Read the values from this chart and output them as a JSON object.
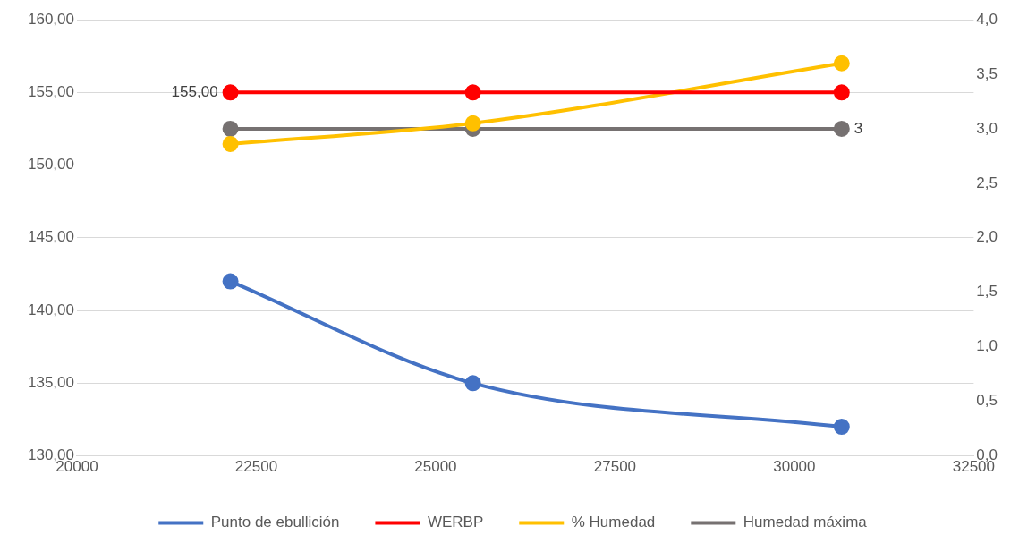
{
  "chart_data": {
    "type": "line",
    "x": [
      22140,
      25520,
      30660
    ],
    "series": [
      {
        "name": "Punto de ebullición",
        "color": "#4472c4",
        "values": [
          142,
          135,
          132
        ],
        "axis": "y"
      },
      {
        "name": "WERBP",
        "color": "#ff0000",
        "values": [
          155,
          155,
          155
        ],
        "axis": "y",
        "value_labels": [
          "155,00",
          null,
          null
        ]
      },
      {
        "name": "% Humedad",
        "color": "#ffc000",
        "values": [
          2.86,
          3.05,
          3.6
        ],
        "axis": "y2"
      },
      {
        "name": "Humedad máxima",
        "color": "#767171",
        "values": [
          3,
          3,
          3
        ],
        "axis": "y2",
        "value_labels": [
          null,
          null,
          "3"
        ]
      }
    ],
    "xlim": [
      20000,
      32500
    ],
    "xticks": [
      20000,
      22500,
      25000,
      27500,
      30000,
      32500
    ],
    "ylim": [
      130,
      160
    ],
    "yticks": [
      {
        "value": 130,
        "label": "130,00"
      },
      {
        "value": 135,
        "label": "135,00"
      },
      {
        "value": 140,
        "label": "140,00"
      },
      {
        "value": 145,
        "label": "145,00"
      },
      {
        "value": 150,
        "label": "150,00"
      },
      {
        "value": 155,
        "label": "155,00"
      },
      {
        "value": 160,
        "label": "160,00"
      }
    ],
    "y2lim": [
      0,
      4
    ],
    "y2ticks": [
      {
        "value": 0,
        "label": "0,0"
      },
      {
        "value": 0.5,
        "label": "0,5"
      },
      {
        "value": 1,
        "label": "1,0"
      },
      {
        "value": 1.5,
        "label": "1,5"
      },
      {
        "value": 2,
        "label": "2,0"
      },
      {
        "value": 2.5,
        "label": "2,5"
      },
      {
        "value": 3,
        "label": "3,0"
      },
      {
        "value": 3.5,
        "label": "3,5"
      },
      {
        "value": 4,
        "label": "4,0"
      }
    ],
    "grid": "y",
    "legend": "bottom",
    "marker": "circle",
    "line_style": "solid"
  }
}
